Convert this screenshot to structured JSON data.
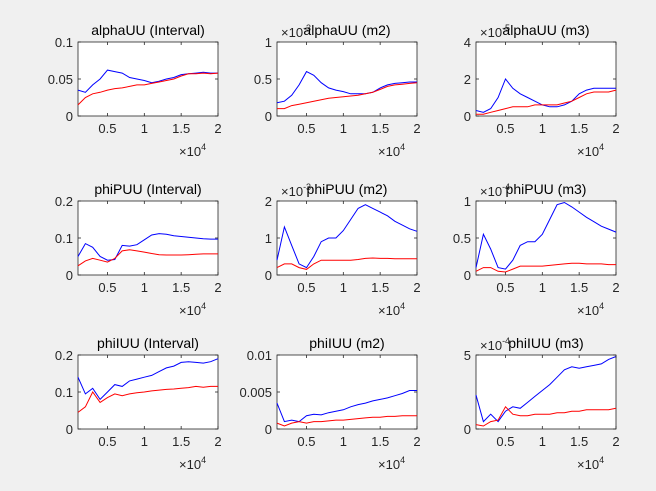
{
  "figure": {
    "background": "#f0f0f0",
    "axes_background": "#ffffff",
    "axis_color": "#262626"
  },
  "chart_data": [
    {
      "type": "line",
      "title": "alphaUU (Interval)",
      "xlim": [
        1000,
        20000
      ],
      "ylim": [
        0,
        0.1
      ],
      "xticks": [
        "0.5",
        "1",
        "1.5",
        "2"
      ],
      "x_exponent": "×10^4",
      "yticks": [
        "0",
        "0.05",
        "0.1"
      ],
      "y_exponent": "",
      "x": [
        1000,
        2000,
        3000,
        4000,
        5000,
        6000,
        7000,
        8000,
        9000,
        10000,
        11000,
        12000,
        13000,
        14000,
        15000,
        16000,
        17000,
        18000,
        19000,
        20000
      ],
      "series": [
        {
          "color": "#0000ff",
          "values": [
            0.035,
            0.032,
            0.042,
            0.05,
            0.062,
            0.06,
            0.058,
            0.052,
            0.05,
            0.048,
            0.045,
            0.047,
            0.05,
            0.052,
            0.056,
            0.057,
            0.058,
            0.059,
            0.058,
            0.058
          ]
        },
        {
          "color": "#ff0000",
          "values": [
            0.015,
            0.025,
            0.03,
            0.032,
            0.035,
            0.037,
            0.038,
            0.04,
            0.042,
            0.042,
            0.044,
            0.046,
            0.048,
            0.05,
            0.054,
            0.057,
            0.057,
            0.058,
            0.057,
            0.058
          ]
        }
      ]
    },
    {
      "type": "line",
      "title": "alphaUU (m2)",
      "xlim": [
        1000,
        20000
      ],
      "ylim": [
        0,
        1
      ],
      "xticks": [
        "0.5",
        "1",
        "1.5",
        "2"
      ],
      "x_exponent": "×10^4",
      "yticks": [
        "0",
        "0.5",
        "1"
      ],
      "y_exponent": "×10^-3",
      "x": [
        1000,
        2000,
        3000,
        4000,
        5000,
        6000,
        7000,
        8000,
        9000,
        10000,
        11000,
        12000,
        13000,
        14000,
        15000,
        16000,
        17000,
        18000,
        19000,
        20000
      ],
      "series": [
        {
          "color": "#0000ff",
          "values": [
            0.18,
            0.2,
            0.28,
            0.42,
            0.6,
            0.55,
            0.45,
            0.38,
            0.35,
            0.33,
            0.3,
            0.3,
            0.3,
            0.32,
            0.38,
            0.42,
            0.44,
            0.45,
            0.46,
            0.46
          ]
        },
        {
          "color": "#ff0000",
          "values": [
            0.1,
            0.1,
            0.14,
            0.16,
            0.18,
            0.2,
            0.22,
            0.24,
            0.25,
            0.26,
            0.27,
            0.28,
            0.3,
            0.32,
            0.36,
            0.4,
            0.42,
            0.43,
            0.44,
            0.45
          ]
        }
      ]
    },
    {
      "type": "line",
      "title": "alphaUU (m3)",
      "xlim": [
        1000,
        20000
      ],
      "ylim": [
        0,
        4
      ],
      "xticks": [
        "0.5",
        "1",
        "1.5",
        "2"
      ],
      "x_exponent": "×10^4",
      "yticks": [
        "0",
        "2",
        "4"
      ],
      "y_exponent": "×10^-5",
      "x": [
        1000,
        2000,
        3000,
        4000,
        5000,
        6000,
        7000,
        8000,
        9000,
        10000,
        11000,
        12000,
        13000,
        14000,
        15000,
        16000,
        17000,
        18000,
        19000,
        20000
      ],
      "series": [
        {
          "color": "#0000ff",
          "values": [
            0.3,
            0.2,
            0.4,
            1.0,
            2.0,
            1.5,
            1.2,
            1.0,
            0.8,
            0.6,
            0.5,
            0.5,
            0.6,
            0.8,
            1.2,
            1.4,
            1.5,
            1.5,
            1.5,
            1.5
          ]
        },
        {
          "color": "#ff0000",
          "values": [
            0.1,
            0.1,
            0.2,
            0.3,
            0.4,
            0.5,
            0.5,
            0.5,
            0.6,
            0.6,
            0.6,
            0.6,
            0.7,
            0.8,
            1.0,
            1.2,
            1.3,
            1.3,
            1.3,
            1.4
          ]
        }
      ]
    },
    {
      "type": "line",
      "title": "phiPUU (Interval)",
      "xlim": [
        1000,
        20000
      ],
      "ylim": [
        0,
        0.2
      ],
      "xticks": [
        "0.5",
        "1",
        "1.5",
        "2"
      ],
      "x_exponent": "×10^4",
      "yticks": [
        "0",
        "0.1",
        "0.2"
      ],
      "y_exponent": "",
      "x": [
        1000,
        2000,
        3000,
        4000,
        5000,
        6000,
        7000,
        8000,
        9000,
        10000,
        11000,
        12000,
        13000,
        14000,
        15000,
        16000,
        17000,
        18000,
        19000,
        20000
      ],
      "series": [
        {
          "color": "#0000ff",
          "values": [
            0.05,
            0.085,
            0.075,
            0.05,
            0.04,
            0.042,
            0.08,
            0.078,
            0.082,
            0.095,
            0.108,
            0.112,
            0.11,
            0.106,
            0.104,
            0.102,
            0.1,
            0.098,
            0.097,
            0.097
          ]
        },
        {
          "color": "#ff0000",
          "values": [
            0.025,
            0.038,
            0.045,
            0.04,
            0.035,
            0.045,
            0.065,
            0.068,
            0.065,
            0.062,
            0.058,
            0.055,
            0.054,
            0.054,
            0.054,
            0.055,
            0.056,
            0.057,
            0.057,
            0.057
          ]
        }
      ]
    },
    {
      "type": "line",
      "title": "phiPUU (m2)",
      "xlim": [
        1000,
        20000
      ],
      "ylim": [
        0,
        2
      ],
      "xticks": [
        "0.5",
        "1",
        "1.5",
        "2"
      ],
      "x_exponent": "×10^4",
      "yticks": [
        "0",
        "1",
        "2"
      ],
      "y_exponent": "×10^-3",
      "x": [
        1000,
        2000,
        3000,
        4000,
        5000,
        6000,
        7000,
        8000,
        9000,
        10000,
        11000,
        12000,
        13000,
        14000,
        15000,
        16000,
        17000,
        18000,
        19000,
        20000
      ],
      "series": [
        {
          "color": "#0000ff",
          "values": [
            0.4,
            1.3,
            0.8,
            0.3,
            0.2,
            0.5,
            0.9,
            1.0,
            1.0,
            1.2,
            1.5,
            1.8,
            1.9,
            1.8,
            1.7,
            1.6,
            1.45,
            1.35,
            1.25,
            1.18
          ]
        },
        {
          "color": "#ff0000",
          "values": [
            0.2,
            0.3,
            0.3,
            0.2,
            0.15,
            0.3,
            0.4,
            0.4,
            0.4,
            0.4,
            0.4,
            0.42,
            0.45,
            0.46,
            0.45,
            0.45,
            0.44,
            0.44,
            0.44,
            0.44
          ]
        }
      ]
    },
    {
      "type": "line",
      "title": "phiPUU (m3)",
      "xlim": [
        1000,
        20000
      ],
      "ylim": [
        0,
        1
      ],
      "xticks": [
        "0.5",
        "1",
        "1.5",
        "2"
      ],
      "x_exponent": "×10^4",
      "yticks": [
        "0",
        "0.5",
        "1"
      ],
      "y_exponent": "×10^-4",
      "x": [
        1000,
        2000,
        3000,
        4000,
        5000,
        6000,
        7000,
        8000,
        9000,
        10000,
        11000,
        12000,
        13000,
        14000,
        15000,
        16000,
        17000,
        18000,
        19000,
        20000
      ],
      "series": [
        {
          "color": "#0000ff",
          "values": [
            0.1,
            0.55,
            0.35,
            0.1,
            0.08,
            0.2,
            0.4,
            0.45,
            0.45,
            0.55,
            0.75,
            0.95,
            0.98,
            0.92,
            0.85,
            0.78,
            0.72,
            0.66,
            0.62,
            0.58
          ]
        },
        {
          "color": "#ff0000",
          "values": [
            0.05,
            0.1,
            0.1,
            0.05,
            0.04,
            0.08,
            0.12,
            0.12,
            0.12,
            0.12,
            0.13,
            0.14,
            0.15,
            0.16,
            0.16,
            0.15,
            0.15,
            0.15,
            0.14,
            0.14
          ]
        }
      ]
    },
    {
      "type": "line",
      "title": "phiIUU (Interval)",
      "xlim": [
        1000,
        20000
      ],
      "ylim": [
        0,
        0.2
      ],
      "xticks": [
        "0.5",
        "1",
        "1.5",
        "2"
      ],
      "x_exponent": "×10^4",
      "yticks": [
        "0",
        "0.1",
        "0.2"
      ],
      "y_exponent": "",
      "x": [
        1000,
        2000,
        3000,
        4000,
        5000,
        6000,
        7000,
        8000,
        9000,
        10000,
        11000,
        12000,
        13000,
        14000,
        15000,
        16000,
        17000,
        18000,
        19000,
        20000
      ],
      "series": [
        {
          "color": "#0000ff",
          "values": [
            0.14,
            0.095,
            0.11,
            0.08,
            0.1,
            0.12,
            0.115,
            0.13,
            0.135,
            0.14,
            0.145,
            0.155,
            0.165,
            0.17,
            0.18,
            0.182,
            0.18,
            0.178,
            0.182,
            0.19
          ]
        },
        {
          "color": "#ff0000",
          "values": [
            0.045,
            0.06,
            0.1,
            0.072,
            0.085,
            0.095,
            0.09,
            0.095,
            0.098,
            0.1,
            0.103,
            0.105,
            0.107,
            0.108,
            0.11,
            0.112,
            0.115,
            0.113,
            0.115,
            0.115
          ]
        }
      ]
    },
    {
      "type": "line",
      "title": "phiIUU (m2)",
      "xlim": [
        1000,
        20000
      ],
      "ylim": [
        0,
        0.01
      ],
      "xticks": [
        "0.5",
        "1",
        "1.5",
        "2"
      ],
      "x_exponent": "×10^4",
      "yticks": [
        "0",
        "0.005",
        "0.01"
      ],
      "y_exponent": "",
      "x": [
        1000,
        2000,
        3000,
        4000,
        5000,
        6000,
        7000,
        8000,
        9000,
        10000,
        11000,
        12000,
        13000,
        14000,
        15000,
        16000,
        17000,
        18000,
        19000,
        20000
      ],
      "series": [
        {
          "color": "#0000ff",
          "values": [
            0.0035,
            0.001,
            0.0012,
            0.001,
            0.0018,
            0.002,
            0.0019,
            0.0022,
            0.0024,
            0.0026,
            0.003,
            0.0033,
            0.0035,
            0.0038,
            0.004,
            0.0042,
            0.0045,
            0.0048,
            0.0052,
            0.0052
          ]
        },
        {
          "color": "#ff0000",
          "values": [
            0.0008,
            0.0004,
            0.0008,
            0.001,
            0.0008,
            0.001,
            0.001,
            0.0011,
            0.0012,
            0.0012,
            0.0013,
            0.0014,
            0.0015,
            0.0016,
            0.0016,
            0.0017,
            0.0017,
            0.0018,
            0.0018,
            0.0018
          ]
        }
      ]
    },
    {
      "type": "line",
      "title": "phiIUU (m3)",
      "xlim": [
        1000,
        20000
      ],
      "ylim": [
        0,
        5
      ],
      "xticks": [
        "0.5",
        "1",
        "1.5",
        "2"
      ],
      "x_exponent": "×10^4",
      "yticks": [
        "0",
        "5"
      ],
      "y_exponent": "×10^-4",
      "x": [
        1000,
        2000,
        3000,
        4000,
        5000,
        6000,
        7000,
        8000,
        9000,
        10000,
        11000,
        12000,
        13000,
        14000,
        15000,
        16000,
        17000,
        18000,
        19000,
        20000
      ],
      "series": [
        {
          "color": "#0000ff",
          "values": [
            2.3,
            0.5,
            1.0,
            0.5,
            1.2,
            1.5,
            1.4,
            1.8,
            2.2,
            2.6,
            3.0,
            3.5,
            4.0,
            4.2,
            4.1,
            4.2,
            4.3,
            4.4,
            4.7,
            4.9
          ]
        },
        {
          "color": "#ff0000",
          "values": [
            0.3,
            0.2,
            0.5,
            0.6,
            1.5,
            1.0,
            0.9,
            0.9,
            1.0,
            1.0,
            1.0,
            1.1,
            1.1,
            1.2,
            1.2,
            1.3,
            1.3,
            1.3,
            1.3,
            1.4
          ]
        }
      ]
    }
  ]
}
